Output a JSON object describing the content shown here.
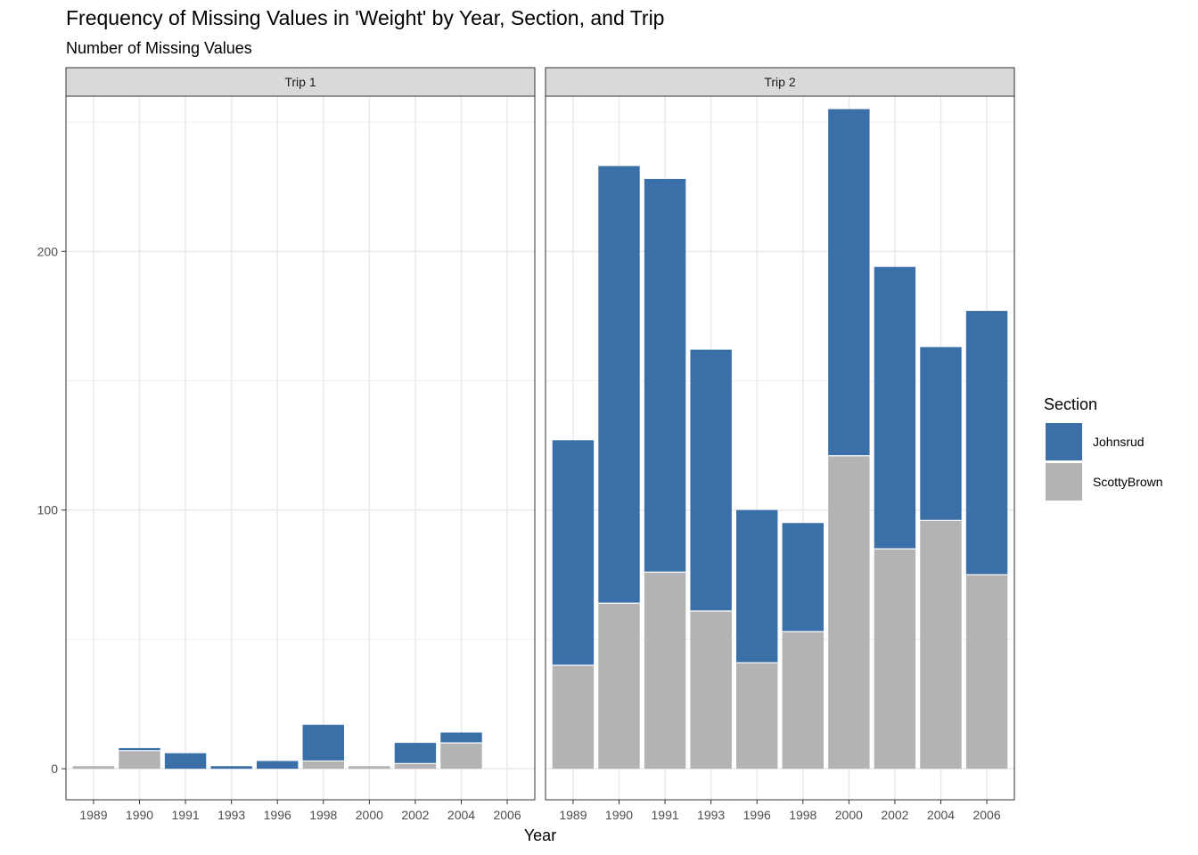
{
  "chart_data": {
    "type": "bar",
    "stacked": true,
    "title": "Frequency of Missing Values in 'Weight' by Year, Section, and Trip",
    "subtitle": "Number of Missing Values",
    "xlabel": "Year",
    "ylabel": "",
    "ylim": [
      -12,
      260
    ],
    "yticks": [
      0,
      100,
      200
    ],
    "grid": true,
    "legend": {
      "title": "Section",
      "placement": "right",
      "entries": [
        {
          "name": "Johnsrud",
          "color": "#3A6FA8"
        },
        {
          "name": "ScottyBrown",
          "color": "#B3B3B3"
        }
      ]
    },
    "categories": [
      "1989",
      "1990",
      "1991",
      "1993",
      "1996",
      "1998",
      "2000",
      "2002",
      "2004",
      "2006"
    ],
    "panels": [
      {
        "label": "Trip 1",
        "series": [
          {
            "name": "ScottyBrown",
            "values": [
              1,
              7,
              0,
              0,
              0,
              3,
              1,
              2,
              10,
              0
            ]
          },
          {
            "name": "Johnsrud",
            "values": [
              0,
              1,
              6,
              1,
              3,
              14,
              0,
              8,
              4,
              0
            ]
          }
        ]
      },
      {
        "label": "Trip 2",
        "series": [
          {
            "name": "ScottyBrown",
            "values": [
              40,
              64,
              76,
              61,
              41,
              53,
              121,
              85,
              96,
              75
            ]
          },
          {
            "name": "Johnsrud",
            "values": [
              87,
              169,
              152,
              101,
              59,
              42,
              134,
              109,
              67,
              102
            ]
          }
        ]
      }
    ]
  }
}
